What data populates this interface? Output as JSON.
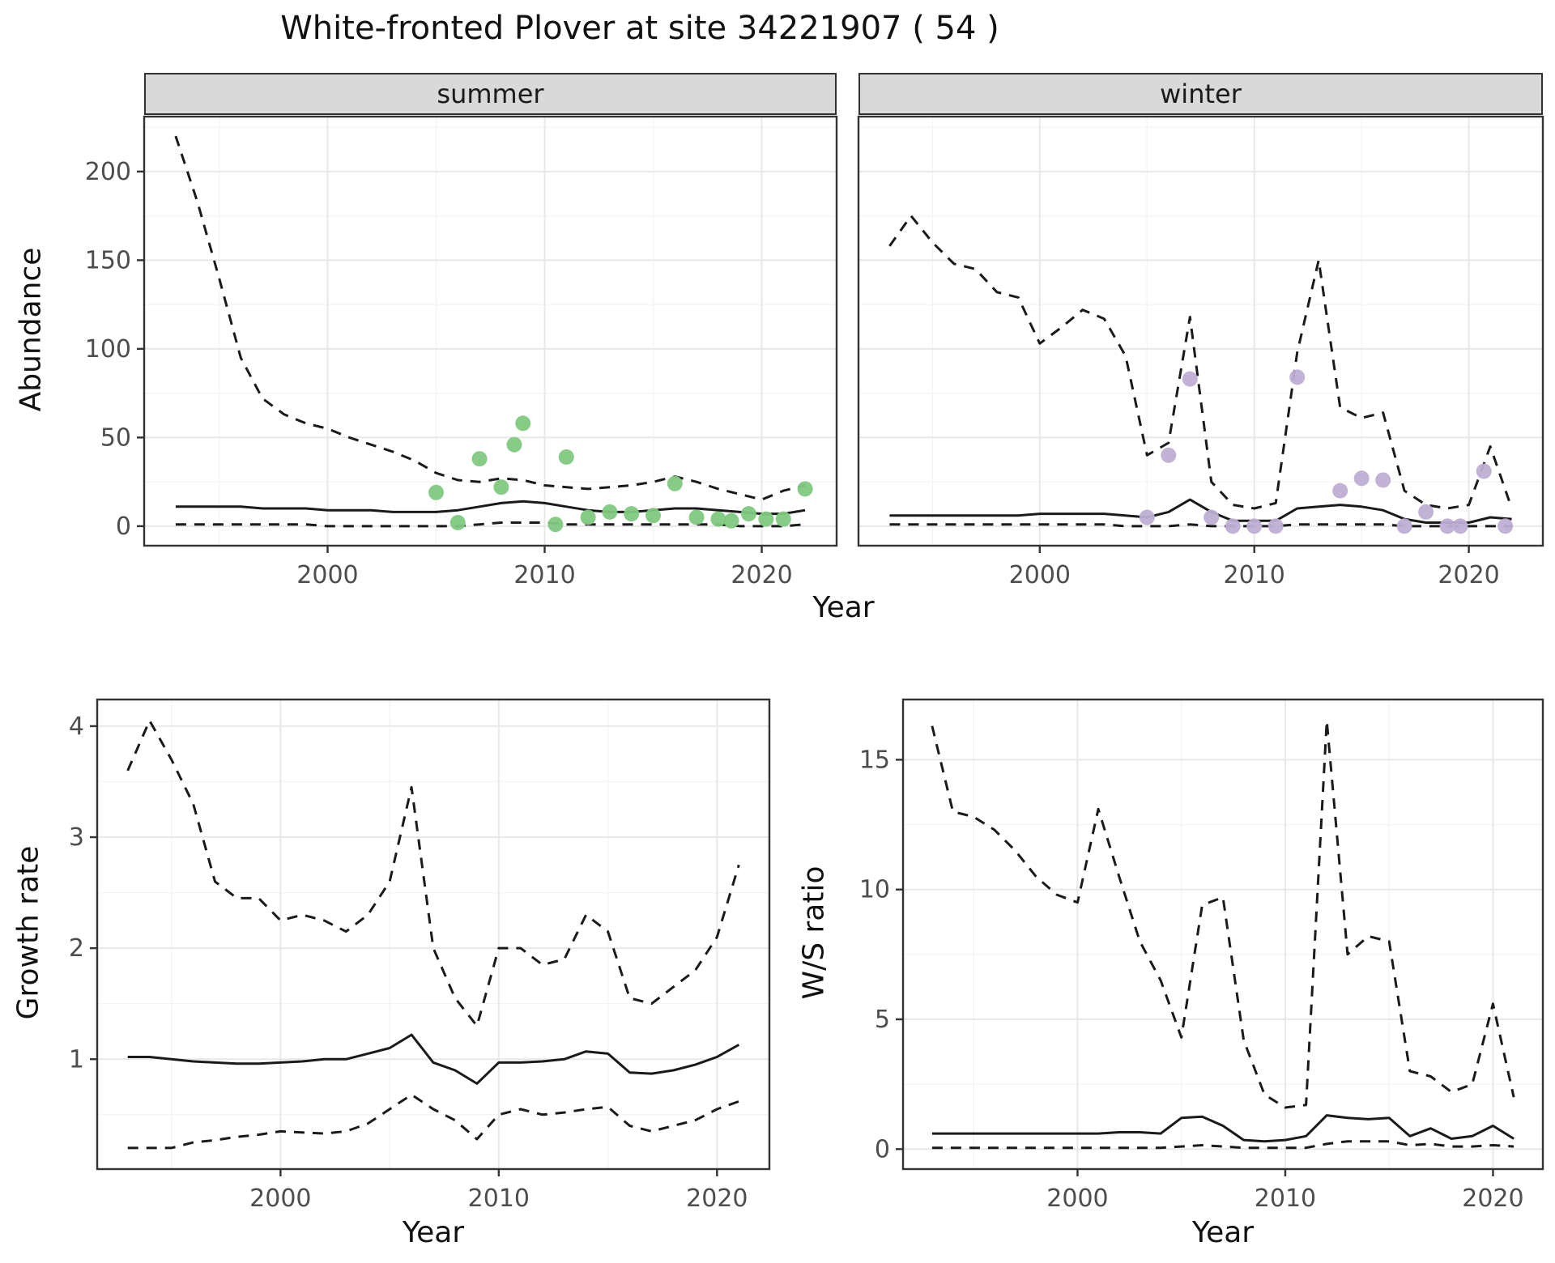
{
  "title": "White-fronted Plover at site 34221907 ( 54 )",
  "axes": {
    "top_ylabel": "Abundance",
    "top_xlabel": "Year",
    "growth_ylabel": "Growth rate",
    "growth_xlabel": "Year",
    "ws_ylabel": "W/S ratio",
    "ws_xlabel": "Year"
  },
  "facets": {
    "summer": "summer",
    "winter": "winter"
  },
  "colors": {
    "summer_points": "#7fc97f",
    "winter_points": "#beaed4",
    "line": "#1a1a1a",
    "strip_bg": "#d9d9d9",
    "grid_major": "#e8e8e8",
    "grid_minor": "#f4f4f4",
    "tick_text": "#4d4d4d",
    "panel_border": "#333333"
  },
  "chart_data": [
    {
      "id": "summer-abundance",
      "type": "line",
      "facet_label": "summer",
      "xlabel": "Year",
      "ylabel": "Abundance",
      "xlim": [
        1991.55,
        2023.45
      ],
      "ylim": [
        -11,
        231
      ],
      "xticks": [
        2000,
        2010,
        2020
      ],
      "yticks": [
        0,
        50,
        100,
        150,
        200
      ],
      "grid": true,
      "legend": "none",
      "axes_shown": {
        "left": true,
        "bottom": true
      },
      "x": [
        1993,
        1994,
        1995,
        1996,
        1997,
        1998,
        1999,
        2000,
        2001,
        2002,
        2003,
        2004,
        2005,
        2006,
        2007,
        2008,
        2009,
        2010,
        2011,
        2012,
        2013,
        2014,
        2015,
        2016,
        2017,
        2018,
        2019,
        2020,
        2021,
        2022
      ],
      "series": [
        {
          "name": "upper-95ci",
          "style": "dashed",
          "values": [
            220,
            183,
            140,
            95,
            72,
            63,
            58,
            55,
            50,
            46,
            42,
            37,
            30,
            26,
            25,
            27,
            26,
            23,
            22,
            21,
            22,
            23,
            25,
            28,
            25,
            21,
            18,
            15,
            20,
            23
          ]
        },
        {
          "name": "median",
          "style": "solid",
          "values": [
            11,
            11,
            11,
            11,
            10,
            10,
            10,
            9,
            9,
            9,
            8,
            8,
            8,
            9,
            11,
            13,
            14,
            13,
            11,
            9,
            8,
            8,
            9,
            10,
            10,
            9,
            8,
            7,
            7,
            9
          ]
        },
        {
          "name": "lower-95ci",
          "style": "dashed",
          "values": [
            1,
            1,
            1,
            1,
            1,
            1,
            1,
            0,
            0,
            0,
            0,
            0,
            0,
            0,
            1,
            2,
            2,
            2,
            1,
            1,
            1,
            1,
            1,
            1,
            1,
            1,
            0,
            0,
            0,
            1
          ]
        }
      ],
      "points": {
        "name": "observed-summer-counts",
        "color": "#7fc97f",
        "x": [
          2005,
          2006,
          2007,
          2008,
          2008.6,
          2009,
          2010.5,
          2011,
          2012,
          2013,
          2014,
          2015,
          2016,
          2017,
          2018,
          2018.6,
          2019.4,
          2020.2,
          2021,
          2022
        ],
        "y": [
          19,
          2,
          38,
          22,
          46,
          58,
          1,
          39,
          5,
          8,
          7,
          6,
          24,
          5,
          4,
          3,
          7,
          4,
          4,
          21
        ]
      }
    },
    {
      "id": "winter-abundance",
      "type": "line",
      "facet_label": "winter",
      "xlabel": "Year",
      "ylabel": "Abundance",
      "xlim": [
        1991.55,
        2023.45
      ],
      "ylim": [
        -11,
        231
      ],
      "xticks": [
        2000,
        2010,
        2020
      ],
      "yticks": [
        0,
        50,
        100,
        150,
        200
      ],
      "grid": true,
      "legend": "none",
      "axes_shown": {
        "left": false,
        "bottom": true
      },
      "x": [
        1993,
        1994,
        1995,
        1996,
        1997,
        1998,
        1999,
        2000,
        2001,
        2002,
        2003,
        2004,
        2005,
        2006,
        2007,
        2008,
        2009,
        2010,
        2011,
        2012,
        2013,
        2014,
        2015,
        2016,
        2017,
        2018,
        2019,
        2020,
        2021,
        2022
      ],
      "series": [
        {
          "name": "upper-95ci",
          "style": "dashed",
          "values": [
            158,
            175,
            160,
            148,
            145,
            132,
            129,
            103,
            112,
            122,
            117,
            96,
            40,
            47,
            118,
            25,
            12,
            10,
            13,
            98,
            150,
            67,
            61,
            64,
            20,
            12,
            10,
            12,
            45,
            10
          ]
        },
        {
          "name": "median",
          "style": "solid",
          "values": [
            6,
            6,
            6,
            6,
            6,
            6,
            6,
            7,
            7,
            7,
            7,
            6,
            5,
            8,
            15,
            8,
            3,
            3,
            3,
            10,
            11,
            12,
            11,
            9,
            4,
            2,
            2,
            2,
            5,
            4
          ]
        },
        {
          "name": "lower-95ci",
          "style": "dashed",
          "values": [
            1,
            1,
            1,
            1,
            1,
            1,
            1,
            1,
            1,
            1,
            1,
            0,
            0,
            0,
            1,
            0,
            0,
            0,
            0,
            1,
            1,
            1,
            1,
            1,
            0,
            0,
            0,
            0,
            0,
            0
          ]
        }
      ],
      "points": {
        "name": "observed-winter-counts",
        "color": "#beaed4",
        "x": [
          2005,
          2006,
          2007,
          2008,
          2009,
          2010,
          2011,
          2012,
          2014,
          2015,
          2016,
          2017,
          2018,
          2019,
          2019.6,
          2020.7,
          2021.7
        ],
        "y": [
          5,
          40,
          83,
          5,
          0,
          0,
          0,
          84,
          20,
          27,
          26,
          0,
          8,
          0,
          0,
          31,
          0
        ]
      }
    },
    {
      "id": "growth-rate",
      "type": "line",
      "facet_label": "",
      "xlabel": "Year",
      "ylabel": "Growth rate",
      "xlim": [
        1991.6,
        2022.4
      ],
      "ylim": [
        0.01,
        4.24
      ],
      "xticks": [
        2000,
        2010,
        2020
      ],
      "yticks": [
        1,
        2,
        3,
        4
      ],
      "grid": true,
      "legend": "none",
      "axes_shown": {
        "left": true,
        "bottom": true
      },
      "x": [
        1993,
        1994,
        1995,
        1996,
        1997,
        1998,
        1999,
        2000,
        2001,
        2002,
        2003,
        2004,
        2005,
        2006,
        2007,
        2008,
        2009,
        2010,
        2011,
        2012,
        2013,
        2014,
        2015,
        2016,
        2017,
        2018,
        2019,
        2020,
        2021
      ],
      "series": [
        {
          "name": "upper-95ci",
          "style": "dashed",
          "values": [
            3.6,
            4.05,
            3.7,
            3.3,
            2.6,
            2.45,
            2.45,
            2.25,
            2.3,
            2.25,
            2.15,
            2.3,
            2.6,
            3.45,
            2.0,
            1.55,
            1.3,
            2.0,
            2.0,
            1.85,
            1.9,
            2.3,
            2.15,
            1.55,
            1.5,
            1.65,
            1.8,
            2.1,
            2.75
          ]
        },
        {
          "name": "median",
          "style": "solid",
          "values": [
            1.02,
            1.02,
            1.0,
            0.98,
            0.97,
            0.96,
            0.96,
            0.97,
            0.98,
            1.0,
            1.0,
            1.05,
            1.1,
            1.22,
            0.97,
            0.9,
            0.78,
            0.97,
            0.97,
            0.98,
            1.0,
            1.07,
            1.05,
            0.88,
            0.87,
            0.9,
            0.95,
            1.02,
            1.13
          ]
        },
        {
          "name": "lower-95ci",
          "style": "dashed",
          "values": [
            0.2,
            0.2,
            0.2,
            0.25,
            0.27,
            0.3,
            0.32,
            0.35,
            0.34,
            0.33,
            0.35,
            0.42,
            0.55,
            0.68,
            0.55,
            0.45,
            0.28,
            0.5,
            0.55,
            0.5,
            0.52,
            0.55,
            0.57,
            0.4,
            0.35,
            0.4,
            0.45,
            0.55,
            0.62
          ]
        }
      ]
    },
    {
      "id": "ws-ratio",
      "type": "line",
      "facet_label": "",
      "xlabel": "Year",
      "ylabel": "W/S ratio",
      "xlim": [
        1991.6,
        2022.4
      ],
      "ylim": [
        -0.77,
        17.32
      ],
      "xticks": [
        2000,
        2010,
        2020
      ],
      "yticks": [
        0,
        5,
        10,
        15
      ],
      "grid": true,
      "legend": "none",
      "axes_shown": {
        "left": true,
        "bottom": true
      },
      "x": [
        1993,
        1994,
        1995,
        1996,
        1997,
        1998,
        1999,
        2000,
        2001,
        2002,
        2003,
        2004,
        2005,
        2006,
        2007,
        2008,
        2009,
        2010,
        2011,
        2012,
        2013,
        2014,
        2015,
        2016,
        2017,
        2018,
        2019,
        2020,
        2021
      ],
      "series": [
        {
          "name": "upper-95ci",
          "style": "dashed",
          "values": [
            16.3,
            13.0,
            12.8,
            12.3,
            11.5,
            10.5,
            9.8,
            9.5,
            13.1,
            10.5,
            8.0,
            6.5,
            4.3,
            9.4,
            9.7,
            4.2,
            2.1,
            1.6,
            1.7,
            16.5,
            7.5,
            8.2,
            8.0,
            3.0,
            2.8,
            2.2,
            2.5,
            5.6,
            2.0
          ]
        },
        {
          "name": "median",
          "style": "solid",
          "values": [
            0.6,
            0.6,
            0.6,
            0.6,
            0.6,
            0.6,
            0.6,
            0.6,
            0.6,
            0.65,
            0.65,
            0.6,
            1.2,
            1.25,
            0.9,
            0.35,
            0.3,
            0.35,
            0.5,
            1.3,
            1.2,
            1.15,
            1.2,
            0.5,
            0.8,
            0.4,
            0.5,
            0.9,
            0.4
          ]
        },
        {
          "name": "lower-95ci",
          "style": "dashed",
          "values": [
            0.05,
            0.05,
            0.05,
            0.05,
            0.05,
            0.05,
            0.05,
            0.05,
            0.05,
            0.05,
            0.05,
            0.05,
            0.1,
            0.15,
            0.1,
            0.05,
            0.05,
            0.05,
            0.05,
            0.2,
            0.3,
            0.3,
            0.3,
            0.15,
            0.2,
            0.1,
            0.1,
            0.15,
            0.1
          ]
        }
      ]
    }
  ]
}
